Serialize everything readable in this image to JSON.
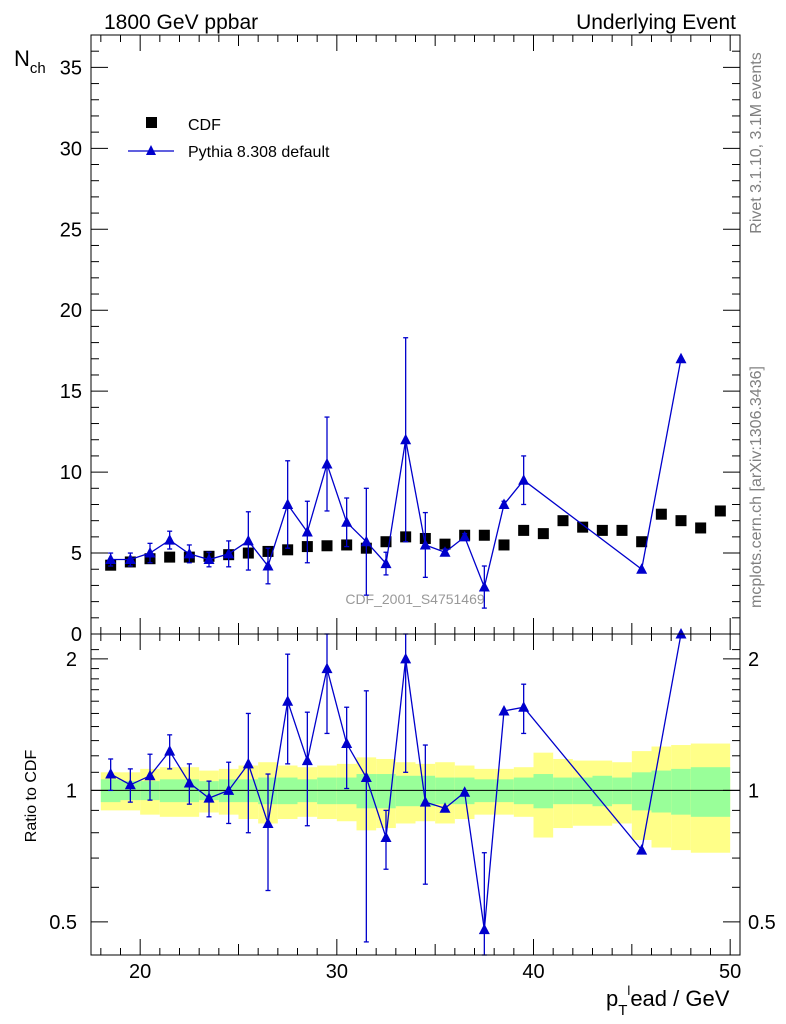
{
  "header": {
    "left": "1800 GeV ppbar",
    "right": "Underlying Event"
  },
  "side_labels": {
    "rivet": "Rivet 3.1.10,  3.1M events",
    "mcplots": "mcplots.cern.ch [arXiv:1306.3436]"
  },
  "watermark": "CDF_2001_S4751469",
  "axis": {
    "y_main_label": "N",
    "y_main_sub": "ch",
    "y_ratio_label": "Ratio to CDF",
    "x_label_main": "p",
    "x_label_sub": "T",
    "x_label_sup": "l",
    "x_label_rest": "ead / GeV"
  },
  "legend": {
    "cdf": "CDF",
    "pythia": "Pythia 8.308 default"
  },
  "colors": {
    "pythia": "#0000cc",
    "band_inner": "#99ff99",
    "band_outer": "#ffff88",
    "data": "#000000"
  },
  "chart_data": {
    "type": "scatter",
    "title": "1800 GeV ppbar — Underlying Event",
    "xlabel": "p_T^lead / GeV",
    "ylabel": "N_ch",
    "xlim": [
      17.5,
      50.5
    ],
    "ylim": [
      0,
      37
    ],
    "ratio_ylabel": "Ratio to CDF",
    "ratio_ylim": [
      0.42,
      2.28
    ],
    "x_ticks": [
      "20",
      "30",
      "40",
      "50"
    ],
    "y_ticks": [
      "0",
      "5",
      "10",
      "15",
      "20",
      "25",
      "30",
      "35"
    ],
    "ratio_ticks": [
      "0.5",
      "1",
      "2"
    ],
    "cdf": {
      "name": "CDF",
      "x": [
        18.5,
        19.5,
        20.5,
        21.5,
        22.5,
        23.5,
        24.5,
        25.5,
        26.5,
        27.5,
        28.5,
        29.5,
        30.5,
        31.5,
        32.5,
        33.5,
        34.5,
        35.5,
        36.5,
        37.5,
        38.5,
        39.5,
        40.5,
        41.5,
        42.5,
        43.5,
        44.5,
        45.5,
        46.5,
        47.5,
        48.5,
        49.5
      ],
      "y": [
        4.25,
        4.45,
        4.65,
        4.75,
        4.75,
        4.8,
        4.9,
        5.0,
        5.1,
        5.2,
        5.4,
        5.45,
        5.5,
        5.3,
        5.7,
        6.0,
        5.9,
        5.55,
        6.1,
        6.1,
        5.5,
        6.4,
        6.2,
        7.0,
        6.6,
        6.4,
        6.4,
        5.7,
        7.4,
        7.0,
        6.55,
        7.6
      ],
      "band_inner": [
        0.06,
        0.05,
        0.05,
        0.06,
        0.06,
        0.05,
        0.06,
        0.06,
        0.07,
        0.07,
        0.06,
        0.07,
        0.07,
        0.09,
        0.09,
        0.08,
        0.08,
        0.07,
        0.07,
        0.06,
        0.06,
        0.07,
        0.09,
        0.07,
        0.07,
        0.08,
        0.07,
        0.1,
        0.11,
        0.12,
        0.13,
        0.13
      ],
      "band_outer": [
        0.1,
        0.1,
        0.12,
        0.13,
        0.13,
        0.11,
        0.12,
        0.14,
        0.16,
        0.14,
        0.13,
        0.14,
        0.15,
        0.19,
        0.18,
        0.16,
        0.15,
        0.16,
        0.14,
        0.12,
        0.12,
        0.13,
        0.22,
        0.18,
        0.17,
        0.17,
        0.16,
        0.23,
        0.26,
        0.27,
        0.28,
        0.28
      ]
    },
    "pythia": {
      "name": "Pythia 8.308 default",
      "x": [
        18.5,
        19.5,
        20.5,
        21.5,
        22.5,
        23.5,
        24.5,
        25.5,
        26.5,
        27.5,
        28.5,
        29.5,
        30.5,
        31.5,
        32.5,
        33.5,
        34.5,
        35.5,
        36.5,
        37.5,
        38.5,
        39.5,
        45.5,
        47.5
      ],
      "y": [
        4.6,
        4.6,
        5.0,
        5.8,
        4.95,
        4.6,
        4.95,
        5.75,
        4.2,
        8.0,
        6.3,
        10.5,
        6.9,
        5.7,
        4.35,
        12.0,
        5.5,
        5.05,
        6.0,
        2.9,
        8.0,
        9.5,
        4.0,
        17.0
      ],
      "yerr": [
        0.4,
        0.4,
        0.6,
        0.55,
        0.55,
        0.45,
        0.8,
        1.8,
        1.1,
        2.7,
        1.9,
        2.9,
        1.5,
        3.3,
        0.7,
        6.3,
        2.0,
        0.2,
        0.2,
        1.3,
        0.2,
        1.5,
        0.1,
        0.1
      ],
      "ratio": [
        1.09,
        1.03,
        1.08,
        1.23,
        1.04,
        0.96,
        1.0,
        1.15,
        0.84,
        1.6,
        1.17,
        1.9,
        1.28,
        1.07,
        0.78,
        2.0,
        0.94,
        0.91,
        0.99,
        0.48,
        1.52,
        1.55,
        0.73,
        2.3
      ],
      "ratio_err": [
        0.09,
        0.09,
        0.13,
        0.11,
        0.11,
        0.09,
        0.16,
        0.35,
        0.25,
        0.45,
        0.34,
        0.55,
        0.27,
        0.62,
        0.12,
        0.9,
        0.33,
        0.0,
        0.0,
        0.24,
        0.0,
        0.2,
        0.0,
        0.0
      ]
    }
  }
}
